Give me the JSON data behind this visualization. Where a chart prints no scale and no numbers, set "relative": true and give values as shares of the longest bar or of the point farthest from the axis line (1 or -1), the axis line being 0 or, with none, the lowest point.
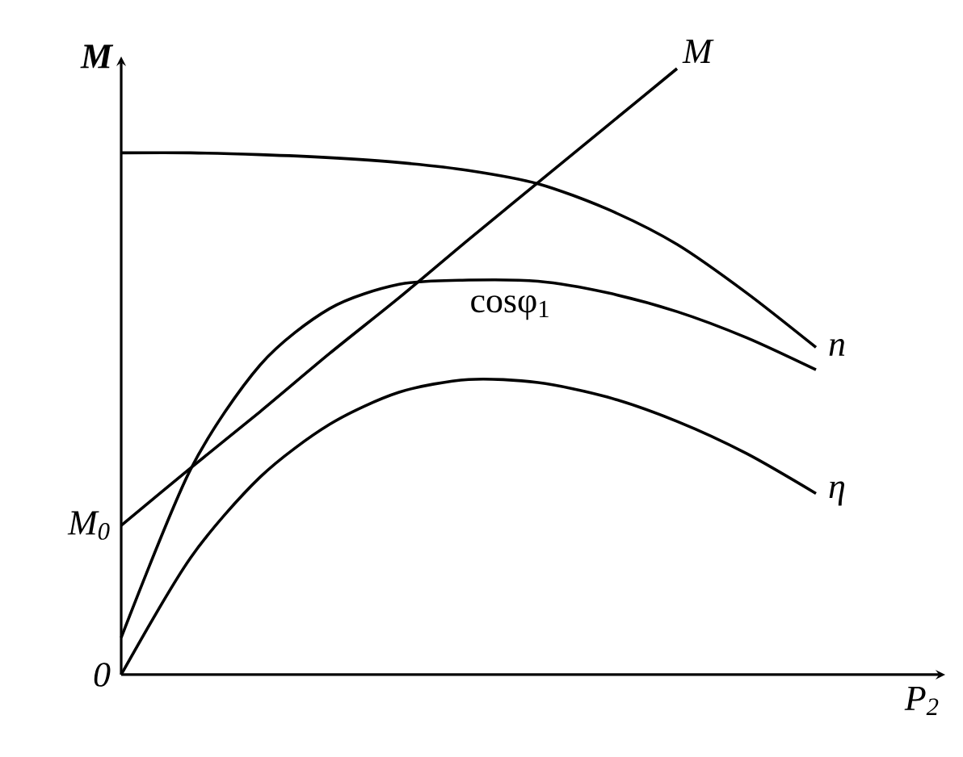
{
  "chart_data": {
    "type": "line",
    "relative": true,
    "marker": "none",
    "line_style": "solid",
    "xlabel": "P$_{2}$",
    "ylabel": "M",
    "categories": [
      null,
      null,
      null,
      null,
      null,
      null,
      null,
      null,
      null,
      null,
      null
    ],
    "series": [
      {
        "name": "M",
        "color": "#000000",
        "values": [
          0.246,
          0.341,
          0.434,
          0.53,
          0.622,
          0.718,
          0.812,
          0.906,
          1.0,
          null,
          null
        ]
      },
      {
        "name": "n",
        "color": "#000000",
        "values": [
          0.861,
          0.861,
          0.858,
          0.853,
          0.845,
          0.832,
          0.81,
          0.768,
          0.71,
          0.63,
          0.54
        ]
      },
      {
        "name": "cosφ$_{1}$",
        "color": "#000000",
        "values": [
          0.061,
          0.339,
          0.511,
          0.604,
          0.644,
          0.651,
          0.649,
          0.63,
          0.599,
          0.556,
          0.503
        ]
      },
      {
        "name": "η",
        "color": "#000000",
        "values": [
          0.0,
          0.193,
          0.326,
          0.413,
          0.466,
          0.487,
          0.482,
          0.458,
          0.418,
          0.365,
          0.299
        ]
      }
    ],
    "annotations": [
      "M$_{0}$",
      "0"
    ]
  }
}
